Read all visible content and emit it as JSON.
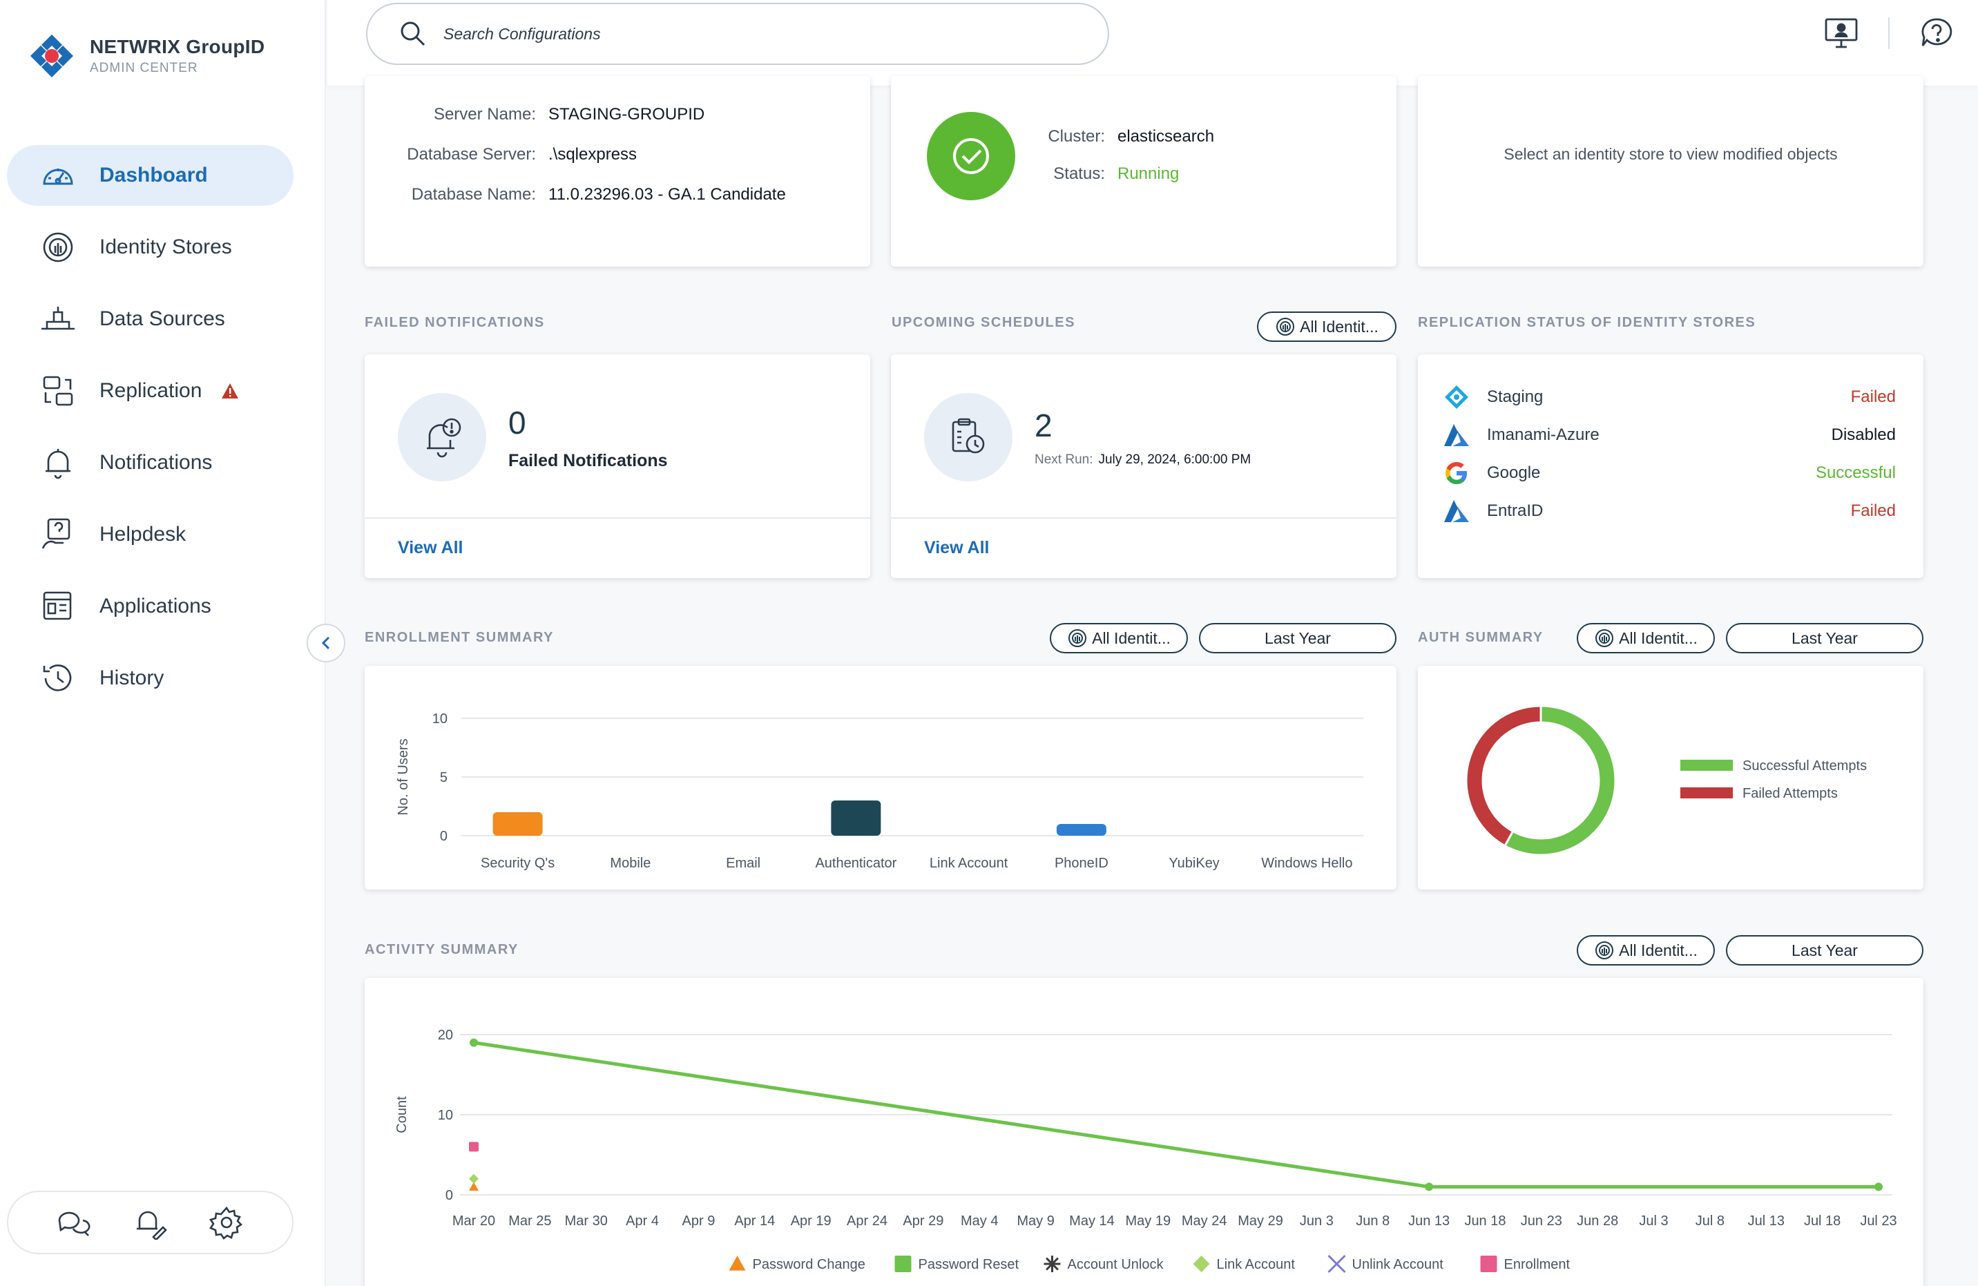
{
  "brand": {
    "title": "NETWRIX GroupID",
    "subtitle": "ADMIN CENTER"
  },
  "sidebar": {
    "items": [
      {
        "label": "Dashboard",
        "icon": "dashboard-icon",
        "active": true
      },
      {
        "label": "Identity Stores",
        "icon": "identity-store-icon"
      },
      {
        "label": "Data Sources",
        "icon": "data-sources-icon"
      },
      {
        "label": "Replication",
        "icon": "replication-icon",
        "warning": true
      },
      {
        "label": "Notifications",
        "icon": "bell-icon"
      },
      {
        "label": "Helpdesk",
        "icon": "helpdesk-icon"
      },
      {
        "label": "Applications",
        "icon": "applications-icon"
      },
      {
        "label": "History",
        "icon": "history-icon"
      }
    ]
  },
  "search": {
    "placeholder": "Search Configurations"
  },
  "server": {
    "server_name_label": "Server Name:",
    "server_name": "STAGING-GROUPID",
    "db_server_label": "Database Server:",
    "db_server": ".\\sqlexpress",
    "db_name_label": "Database Name:",
    "db_name": "11.0.23296.03 - GA.1 Candidate"
  },
  "elastic": {
    "cluster_label": "Cluster:",
    "cluster": "elasticsearch",
    "status_label": "Status:",
    "status": "Running"
  },
  "modified": {
    "message": "Select an identity store to view modified objects"
  },
  "failed_notifications": {
    "title": "FAILED NOTIFICATIONS",
    "count": "0",
    "label": "Failed Notifications",
    "view_all": "View All"
  },
  "upcoming": {
    "title": "UPCOMING SCHEDULES",
    "filter": "All Identit...",
    "count": "2",
    "next_run_label": "Next Run:",
    "next_run": "July 29, 2024, 6:00:00 PM",
    "view_all": "View All"
  },
  "replication": {
    "title": "REPLICATION STATUS OF IDENTITY STORES",
    "rows": [
      {
        "name": "Staging",
        "status": "Failed",
        "color": "#c0392b",
        "icon": "staging-icon"
      },
      {
        "name": "Imanami-Azure",
        "status": "Disabled",
        "color": "#111827",
        "icon": "azure-icon"
      },
      {
        "name": "Google",
        "status": "Successful",
        "color": "#5cb833",
        "icon": "google-icon"
      },
      {
        "name": "EntraID",
        "status": "Failed",
        "color": "#c0392b",
        "icon": "azure-icon"
      }
    ]
  },
  "enrollment": {
    "title": "ENROLLMENT SUMMARY",
    "filter": "All Identit...",
    "period": "Last Year"
  },
  "auth": {
    "title": "AUTH SUMMARY",
    "filter": "All Identit...",
    "period": "Last Year"
  },
  "activity": {
    "title": "ACTIVITY SUMMARY",
    "filter": "All Identit...",
    "period": "Last Year"
  },
  "chart_data": [
    {
      "type": "bar",
      "ylabel": "No. of Users",
      "categories": [
        "Security Q's",
        "Mobile",
        "Email",
        "Authenticator",
        "Link Account",
        "PhoneID",
        "YubiKey",
        "Windows Hello"
      ],
      "values": [
        2,
        0,
        0,
        3,
        0,
        1,
        0,
        0
      ],
      "colors": [
        "#f28a1e",
        "#f28a1e",
        "#f28a1e",
        "#1e4756",
        "#1e4756",
        "#2f7fd1",
        "#2f7fd1",
        "#2f7fd1"
      ],
      "yticks": [
        0,
        5,
        10
      ],
      "ylim": [
        0,
        10
      ]
    },
    {
      "type": "pie",
      "variant": "donut",
      "series": [
        {
          "name": "Successful Attempts",
          "value": 58,
          "color": "#6cc24a"
        },
        {
          "name": "Failed Attempts",
          "value": 42,
          "color": "#c0393b"
        }
      ]
    },
    {
      "type": "line",
      "ylabel": "Count",
      "x": [
        "Mar 20",
        "Mar 25",
        "Mar 30",
        "Apr 4",
        "Apr 9",
        "Apr 14",
        "Apr 19",
        "Apr 24",
        "Apr 29",
        "May 4",
        "May 9",
        "May 14",
        "May 19",
        "May 24",
        "May 29",
        "Jun 3",
        "Jun 8",
        "Jun 13",
        "Jun 18",
        "Jun 23",
        "Jun 28",
        "Jul 3",
        "Jul 8",
        "Jul 13",
        "Jul 18",
        "Jul 23"
      ],
      "yticks": [
        0,
        10,
        20
      ],
      "ylim": [
        0,
        20
      ],
      "series": [
        {
          "name": "Password Change",
          "color": "#f28a1e",
          "marker": "triangle",
          "points": [
            [
              "Mar 20",
              1
            ]
          ]
        },
        {
          "name": "Password Reset",
          "color": "#6cc24a",
          "marker": "square",
          "points": [
            [
              "Mar 20",
              19
            ],
            [
              "Jun 13",
              1
            ],
            [
              "Jul 23",
              1
            ]
          ]
        },
        {
          "name": "Account Unlock",
          "color": "#3d3d3d",
          "marker": "asterisk",
          "points": []
        },
        {
          "name": "Link Account",
          "color": "#a8d468",
          "marker": "diamond",
          "points": [
            [
              "Mar 20",
              2
            ]
          ]
        },
        {
          "name": "Unlink Account",
          "color": "#7b7bd6",
          "marker": "cross",
          "points": []
        },
        {
          "name": "Enrollment",
          "color": "#e85a8c",
          "marker": "square",
          "points": [
            [
              "Mar 20",
              6
            ]
          ]
        }
      ]
    }
  ]
}
